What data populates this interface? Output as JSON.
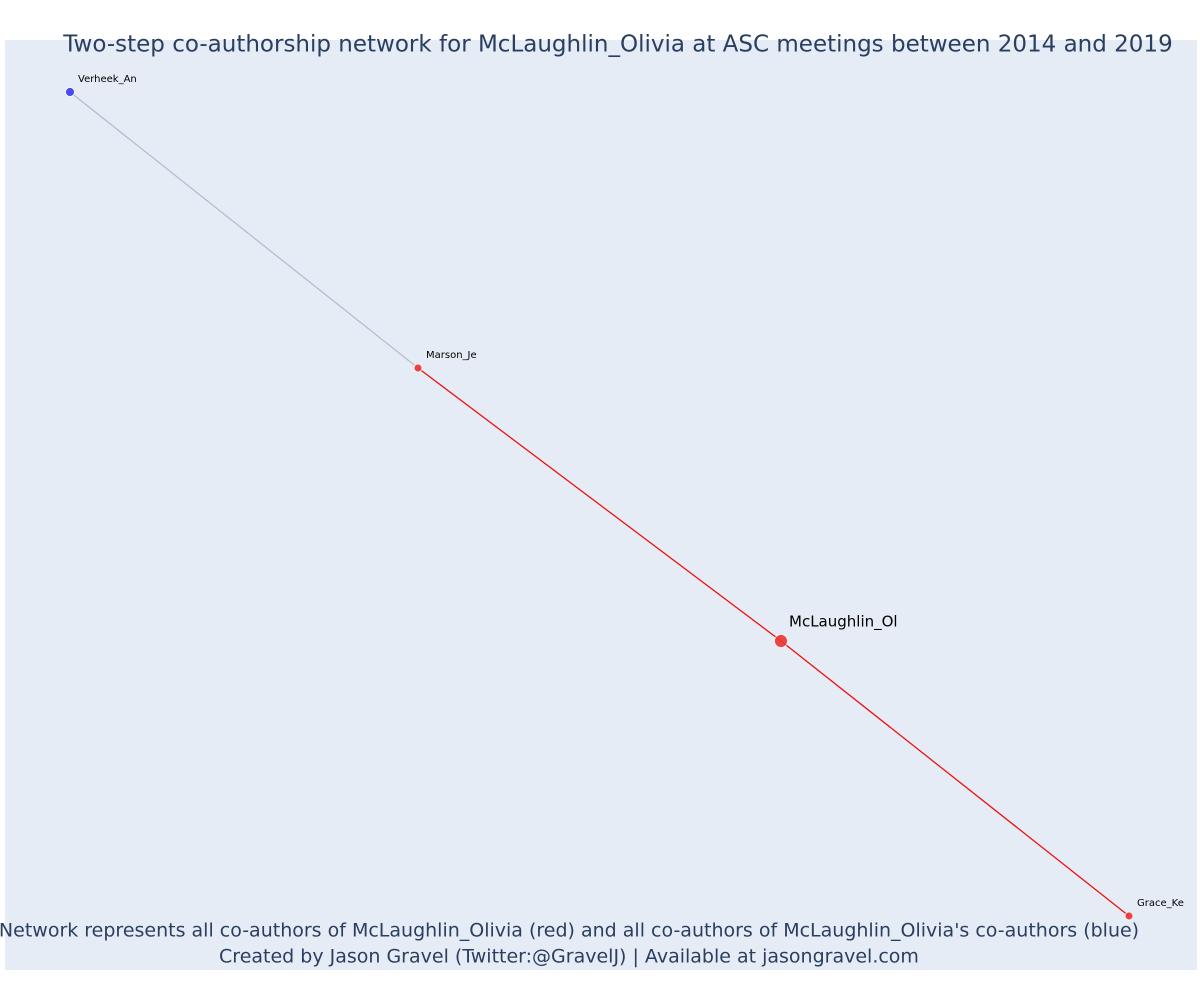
{
  "title": "Two-step co-authorship network for McLaughlin_Olivia at ASC meetings between 2014 and 2019",
  "nodes": [
    {
      "label": "Verheek_An",
      "color": "#3b3bf0"
    },
    {
      "label": "Marson_Je",
      "color": "#ee3333"
    },
    {
      "label": "McLaughlin_Ol",
      "color": "#ee3333"
    },
    {
      "label": "Grace_Ke",
      "color": "#ee3333"
    }
  ],
  "edges": [
    {
      "source": "Verheek_An",
      "target": "Marson_Je",
      "color": "#b8bccc"
    },
    {
      "source": "Marson_Je",
      "target": "McLaughlin_Ol",
      "color": "#ee1111"
    },
    {
      "source": "McLaughlin_Ol",
      "target": "Grace_Ke",
      "color": "#ee1111"
    }
  ],
  "footer": [
    "Network represents all co-authors of McLaughlin_Olivia (red) and all co-authors of McLaughlin_Olivia's co-authors (blue)",
    "Created by Jason Gravel (Twitter:@GravelJ) | Available at jasongravel.com"
  ]
}
